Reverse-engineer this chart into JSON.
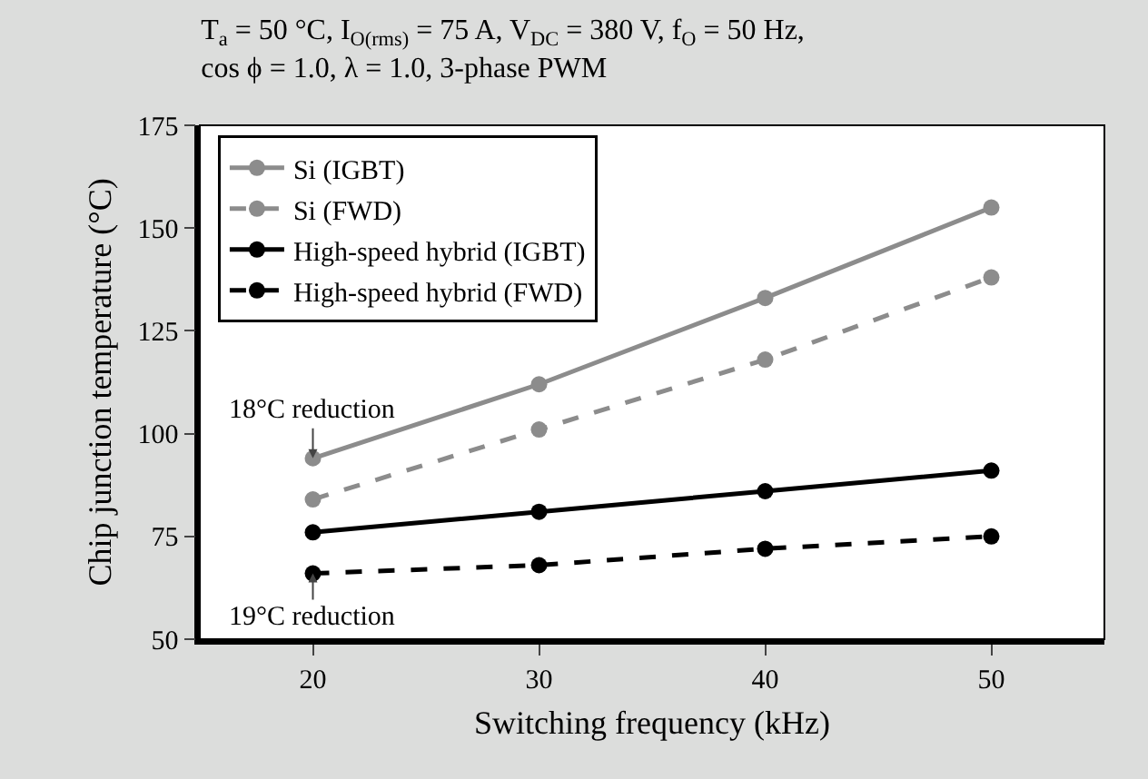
{
  "chart_data": {
    "type": "line",
    "title": "T$_{a}$ = 50 °C, I$_{O(rms)}$ = 75 A, V$_{DC}$ = 380 V, f$_{O}$ = 50 Hz,\ncos ϕ = 1.0, λ = 1.0, 3-phase PWM",
    "xlabel": "Switching frequency (kHz)",
    "ylabel": "Chip junction temperature (°C)",
    "x": [
      20,
      30,
      40,
      50
    ],
    "series": [
      {
        "name": "Si (IGBT)",
        "color": "#8c8c8c",
        "line_style": "solid",
        "values": [
          94,
          112,
          133,
          155
        ]
      },
      {
        "name": "Si (FWD)",
        "color": "#8c8c8c",
        "line_style": "dashed",
        "values": [
          84,
          101,
          118,
          138
        ]
      },
      {
        "name": "High-speed hybrid (IGBT)",
        "color": "#000000",
        "line_style": "solid",
        "values": [
          76,
          81,
          86,
          91
        ]
      },
      {
        "name": "High-speed hybrid (FWD)",
        "color": "#000000",
        "line_style": "dashed",
        "values": [
          66,
          68,
          72,
          75
        ]
      }
    ],
    "xlim": [
      15,
      55
    ],
    "xticks": [
      20,
      30,
      40,
      50
    ],
    "ylim": [
      50,
      175
    ],
    "yticks": [
      50,
      75,
      100,
      125,
      150,
      175
    ],
    "grid": false,
    "legend": "top left",
    "marker": "circle",
    "annotations": [
      {
        "text": "18°C reduction",
        "x": 20,
        "y": 94
      },
      {
        "text": "19°C reduction",
        "x": 20,
        "y": 66
      }
    ]
  }
}
